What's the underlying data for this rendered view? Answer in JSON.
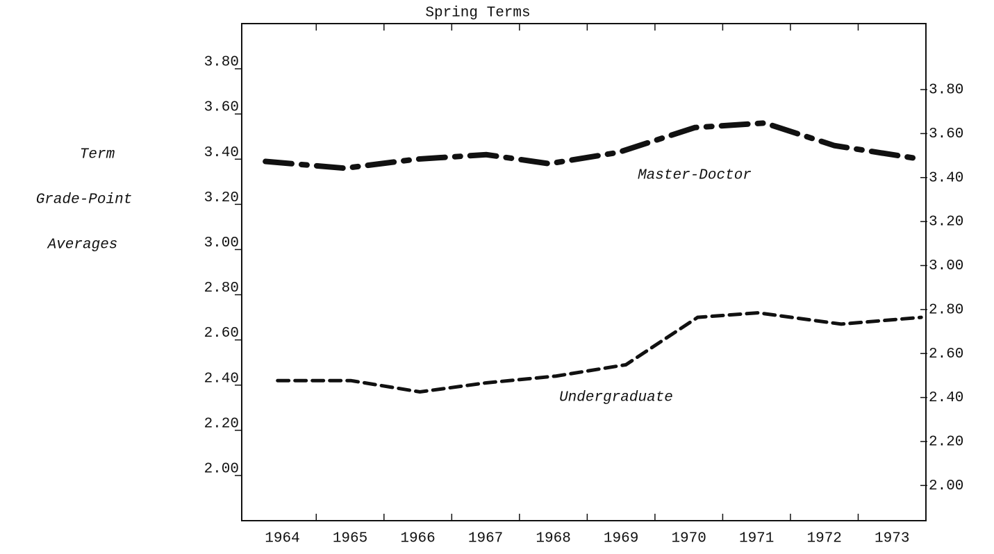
{
  "chart_data": {
    "type": "line",
    "title": "Spring Terms",
    "ylabel": [
      "Term",
      "Grade-Point",
      "Averages"
    ],
    "xticks": [
      1964,
      1965,
      1966,
      1967,
      1968,
      1969,
      1970,
      1971,
      1972,
      1973
    ],
    "xlim": [
      1963.4,
      1973.5
    ],
    "ylim": [
      1.8,
      4.0
    ],
    "yticks": [
      {
        "value": 3.8,
        "label": "3.80"
      },
      {
        "value": 3.6,
        "label": "3.60"
      },
      {
        "value": 3.4,
        "label": "3.40"
      },
      {
        "value": 3.2,
        "label": "3.20"
      },
      {
        "value": 3.0,
        "label": "3.00"
      },
      {
        "value": 2.8,
        "label": "2.80"
      },
      {
        "value": 2.6,
        "label": "2.60"
      },
      {
        "value": 2.4,
        "label": "2.40"
      },
      {
        "value": 2.2,
        "label": "2.20"
      },
      {
        "value": 2.0,
        "label": "2.00"
      }
    ],
    "y2lim": [
      1.84,
      4.1
    ],
    "y2ticks": [
      {
        "value": 3.8,
        "label": "3.80"
      },
      {
        "value": 3.6,
        "label": "3.60"
      },
      {
        "value": 3.4,
        "label": "3.40"
      },
      {
        "value": 3.2,
        "label": "3.20"
      },
      {
        "value": 3.0,
        "label": "3.00"
      },
      {
        "value": 2.8,
        "label": "2.80"
      },
      {
        "value": 2.6,
        "label": "2.60"
      },
      {
        "value": 2.4,
        "label": "2.40"
      },
      {
        "value": 2.2,
        "label": "2.20"
      },
      {
        "value": 2.0,
        "label": "2.00"
      }
    ],
    "series": [
      {
        "name": "Master-Doctor",
        "color": "#111111",
        "x": [
          1963.75,
          1964.92,
          1965.98,
          1967.01,
          1967.94,
          1968.96,
          1970.09,
          1971.12,
          1972.15,
          1973.43
        ],
        "values": [
          3.39,
          3.36,
          3.4,
          3.42,
          3.38,
          3.43,
          3.54,
          3.56,
          3.46,
          3.4
        ]
      },
      {
        "name": "Undergraduate",
        "color": "#111111",
        "x": [
          1963.93,
          1965.01,
          1966.03,
          1967.01,
          1968.04,
          1969.07,
          1970.13,
          1971.02,
          1972.25,
          1973.43
        ],
        "values": [
          2.42,
          2.42,
          2.37,
          2.41,
          2.44,
          2.49,
          2.7,
          2.72,
          2.67,
          2.7
        ]
      }
    ]
  }
}
